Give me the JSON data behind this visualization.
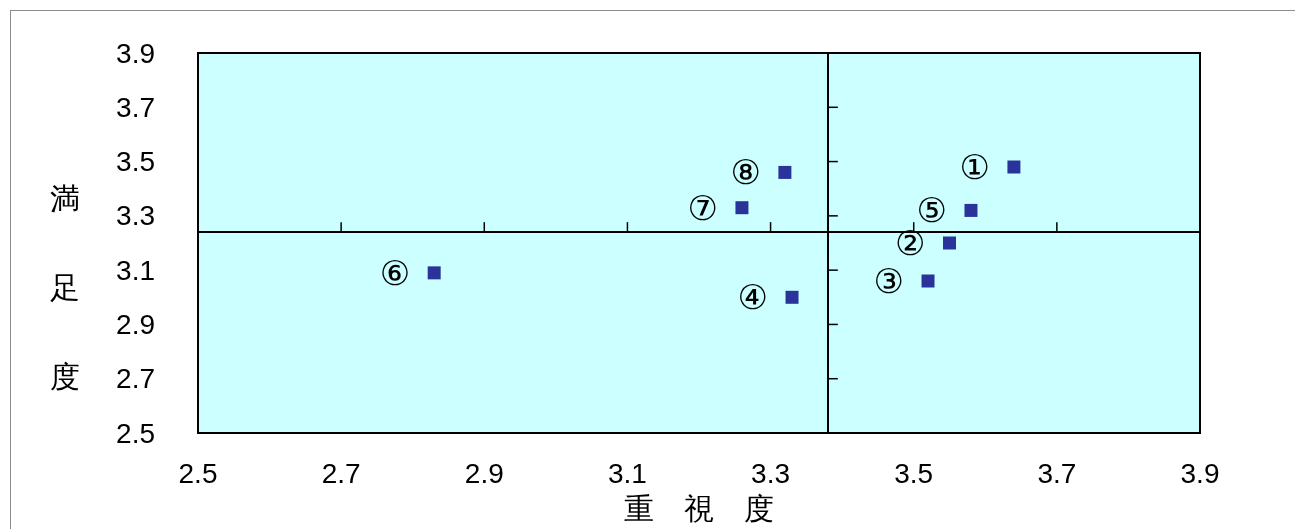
{
  "chart_data": {
    "type": "scatter",
    "xlabel": "重　視　度",
    "ylabel": "満足度",
    "x": [
      3.64,
      3.55,
      3.52,
      3.33,
      3.58,
      2.83,
      3.26,
      3.32
    ],
    "values": [
      3.48,
      3.2,
      3.06,
      3.0,
      3.32,
      3.09,
      3.33,
      3.46
    ],
    "color": "#000080",
    "marker": "square",
    "xlim": [
      2.5,
      3.9
    ],
    "ylim": [
      2.5,
      3.9
    ],
    "xticks": [
      2.5,
      2.7,
      2.9,
      3.1,
      3.3,
      3.5,
      3.7,
      3.9
    ],
    "yticks": [
      2.5,
      2.7,
      2.9,
      3.1,
      3.3,
      3.5,
      3.7,
      3.9
    ],
    "ref_lines": [
      {
        "axis": "x",
        "value": 3.38
      },
      {
        "axis": "y",
        "value": 3.24
      }
    ],
    "annotations": [
      {
        "text": "①",
        "x": 3.64,
        "y": 3.48
      },
      {
        "text": "②",
        "x": 3.55,
        "y": 3.2
      },
      {
        "text": "③",
        "x": 3.52,
        "y": 3.06
      },
      {
        "text": "④",
        "x": 3.33,
        "y": 3.0
      },
      {
        "text": "⑤",
        "x": 3.58,
        "y": 3.32
      },
      {
        "text": "⑥",
        "x": 2.83,
        "y": 3.09
      },
      {
        "text": "⑦",
        "x": 3.26,
        "y": 3.33
      },
      {
        "text": "⑧",
        "x": 3.32,
        "y": 3.46
      }
    ]
  }
}
